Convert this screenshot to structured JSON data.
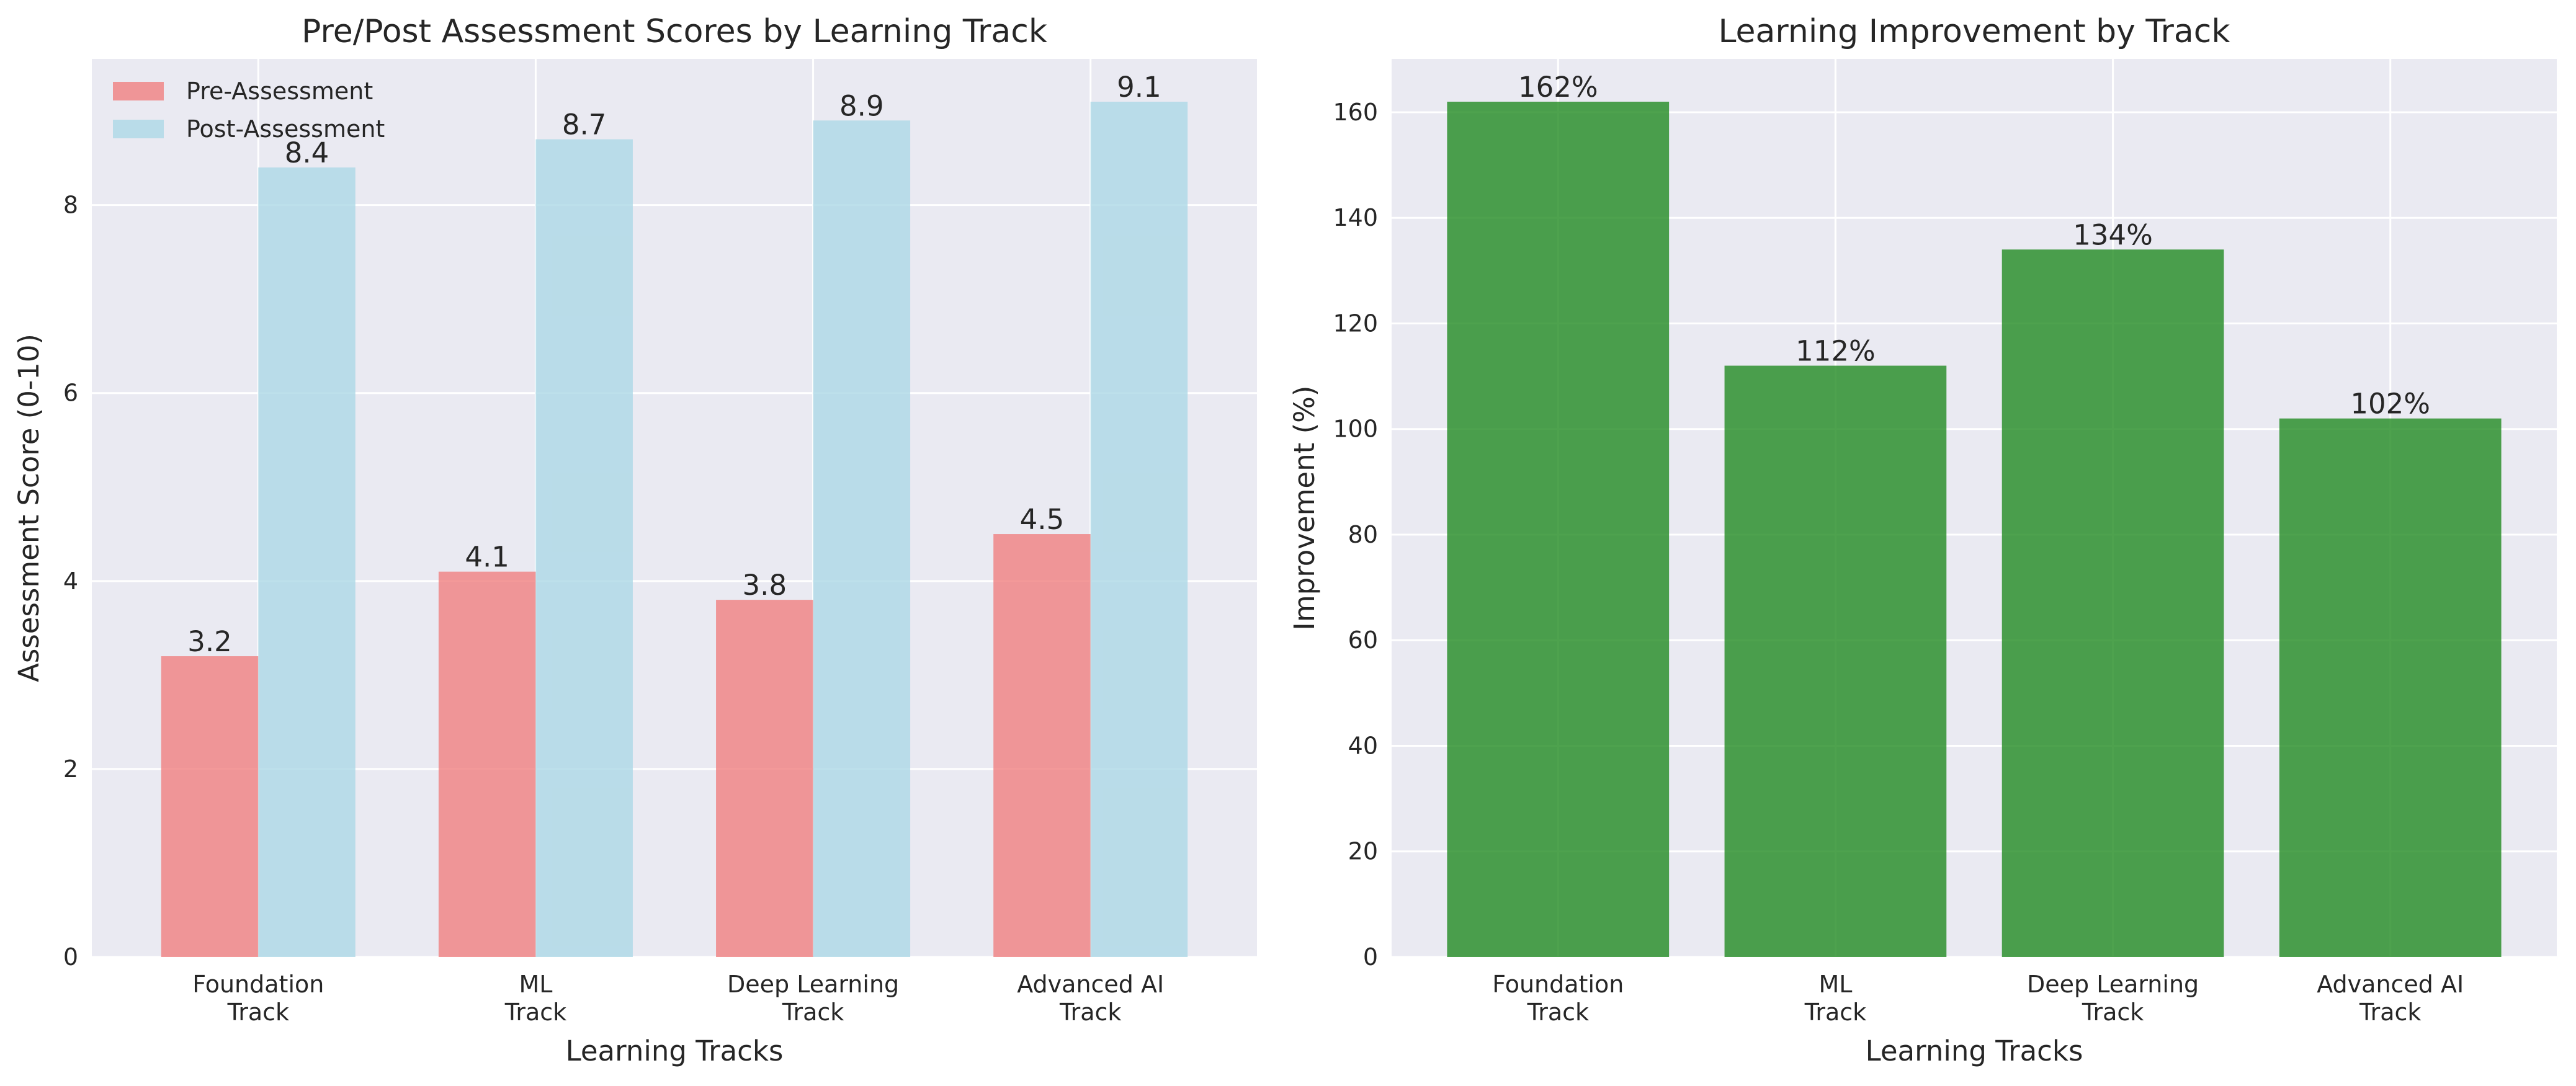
{
  "chart_data": [
    {
      "type": "bar",
      "title": "Pre/Post Assessment Scores by Learning Track",
      "xlabel": "Learning Tracks",
      "ylabel": "Assessment Score (0-10)",
      "categories": [
        [
          "Foundation",
          "Track"
        ],
        [
          "ML",
          "Track"
        ],
        [
          "Deep Learning",
          "Track"
        ],
        [
          "Advanced AI",
          "Track"
        ]
      ],
      "series": [
        {
          "name": "Pre-Assessment",
          "values": [
            3.2,
            4.1,
            3.8,
            4.5
          ],
          "color": "#f08080",
          "labels": [
            "3.2",
            "4.1",
            "3.8",
            "4.5"
          ]
        },
        {
          "name": "Post-Assessment",
          "values": [
            8.4,
            8.7,
            8.9,
            9.1
          ],
          "color": "#add8e6",
          "labels": [
            "8.4",
            "8.7",
            "8.9",
            "9.1"
          ]
        }
      ],
      "ylim": [
        0,
        9.555
      ],
      "yticks": [
        0,
        2,
        4,
        6,
        8
      ],
      "ytick_labels": [
        "0",
        "2",
        "4",
        "6",
        "8"
      ],
      "grid": true,
      "legend": "top-left"
    },
    {
      "type": "bar",
      "title": "Learning Improvement by Track",
      "xlabel": "Learning Tracks",
      "ylabel": "Improvement (%)",
      "categories": [
        [
          "Foundation",
          "Track"
        ],
        [
          "ML",
          "Track"
        ],
        [
          "Deep Learning",
          "Track"
        ],
        [
          "Advanced AI",
          "Track"
        ]
      ],
      "series": [
        {
          "values": [
            162,
            112,
            134,
            102
          ],
          "color": "#228b22",
          "labels": [
            "162%",
            "112%",
            "134%",
            "102%"
          ]
        }
      ],
      "ylim": [
        0,
        170.1
      ],
      "yticks": [
        0,
        20,
        40,
        60,
        80,
        100,
        120,
        140,
        160
      ],
      "ytick_labels": [
        "0",
        "20",
        "40",
        "60",
        "80",
        "100",
        "120",
        "140",
        "160"
      ],
      "grid": true,
      "legend": "none"
    }
  ]
}
